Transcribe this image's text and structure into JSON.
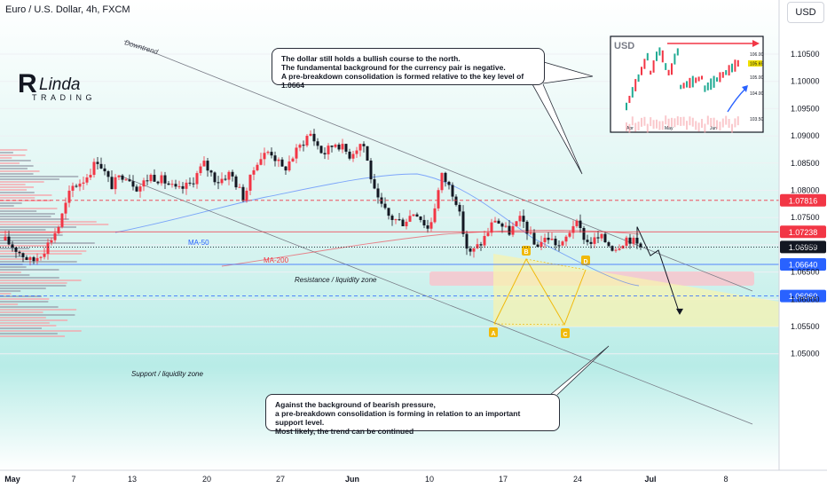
{
  "header": {
    "title": "Euro / U.S. Dollar, 4h, FXCM",
    "currency_button": "USD"
  },
  "logo": {
    "text_top": "Linda",
    "text_bottom": "TRADING"
  },
  "annotations": {
    "downtrend": "Downtrend",
    "ma50": "MA-50",
    "ma200": "MA-200",
    "resistance": "Resistance / liquidity zone",
    "support": "Support / liquidity zone",
    "pattern_points": [
      "A",
      "B",
      "C",
      "D"
    ]
  },
  "callout_top": {
    "lines": [
      "The dollar still holds a bullish course to the north.",
      "The fundamental background for the currency pair is negative.",
      "A pre-breakdown consolidation is formed relative to the key level of 1.0664"
    ]
  },
  "callout_bottom": {
    "lines": [
      "Against the background of bearish pressure,",
      "a pre-breakdown consolidation is forming in relation to an important support level.",
      "Most likely, the trend can be continued"
    ]
  },
  "inset": {
    "label": "USD",
    "y_ticks": [
      "106.00",
      "105.00",
      "104.00",
      "103.50"
    ],
    "price_tag": "105.69",
    "x_labels": [
      "Apr",
      "May",
      "Jun"
    ]
  },
  "colors": {
    "bull": "#f23645",
    "bear": "#131722",
    "ma50": "#2962ff",
    "ma200": "#f23645",
    "resistance_zone": "#f7c6cc",
    "consolidation": "#f7f3b0",
    "pattern": "#f0b90b",
    "support_line": "#2962ff",
    "bg_top": "#ffffff",
    "bg_band": "#b8ece7"
  },
  "chart_data": {
    "type": "candlestick",
    "symbol": "EURUSD",
    "timeframe": "4h",
    "x_tick_labels": [
      "May",
      "7",
      "13",
      "20",
      "27",
      "Jun",
      "10",
      "17",
      "24",
      "Jul",
      "8"
    ],
    "y_ticks": [
      1.05,
      1.055,
      1.06,
      1.065,
      1.07,
      1.075,
      1.08,
      1.085,
      1.09,
      1.095,
      1.1,
      1.105
    ],
    "y_tick_labels": [
      "1.05000",
      "1.05500",
      "1.06000",
      "1.06500",
      "1.07000",
      "1.07500",
      "1.08000",
      "1.08500",
      "1.09000",
      "1.09500",
      "1.10000",
      "1.10500"
    ],
    "ylim": [
      1.0468,
      1.1095
    ],
    "levels": [
      {
        "label": "1.07816",
        "value": 1.07816,
        "color": "#f23645",
        "style": "dashed"
      },
      {
        "label": "1.07238",
        "value": 1.07238,
        "color": "#f23645",
        "style": "solid"
      },
      {
        "label": "1.06959",
        "value": 1.06959,
        "color": "#131722",
        "style": "dotted"
      },
      {
        "label": "1.06640",
        "value": 1.0664,
        "color": "#2962ff",
        "style": "solid"
      },
      {
        "label": "1.06060",
        "value": 1.0606,
        "color": "#2962ff",
        "style": "dashed"
      }
    ],
    "key_prices": [
      1.0708,
      1.0688,
      1.0668,
      1.0693,
      1.0733,
      1.0805,
      1.0821,
      1.0857,
      1.0808,
      1.0832,
      1.0804,
      1.0827,
      1.0817,
      1.0798,
      1.0812,
      1.0849,
      1.0816,
      1.0832,
      1.0786,
      1.0854,
      1.0874,
      1.0836,
      1.0872,
      1.0906,
      1.0866,
      1.0889,
      1.0865,
      1.0891,
      1.0784,
      1.0751,
      1.0741,
      1.0763,
      1.0727,
      1.0828,
      1.0788,
      1.068,
      1.0705,
      1.0748,
      1.0722,
      1.0748,
      1.0698,
      1.0714,
      1.0695,
      1.0743,
      1.0704,
      1.0713,
      1.0693,
      1.0714,
      1.0696
    ],
    "forecast": [
      1.0733,
      1.068,
      1.069,
      1.0573
    ]
  }
}
